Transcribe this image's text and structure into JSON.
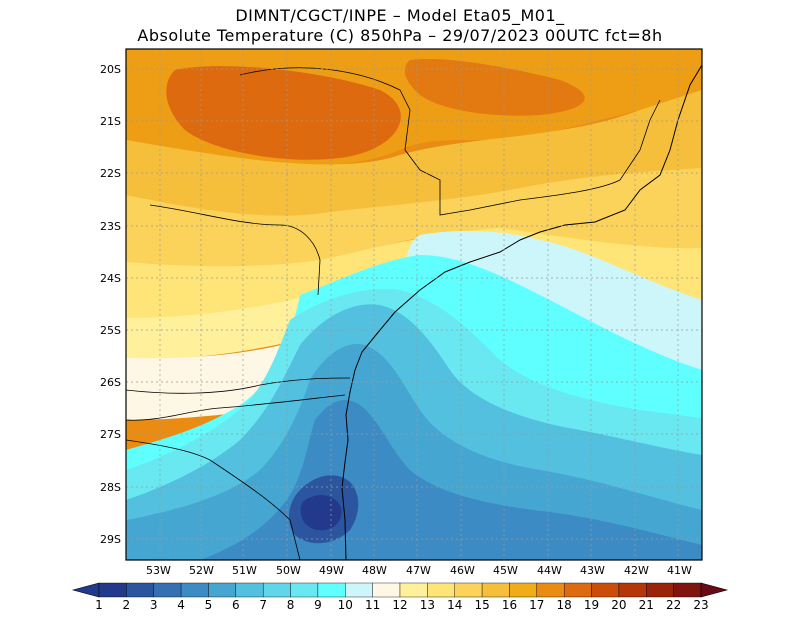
{
  "header": {
    "line1": "DIMNT/CGCT/INPE –  Model Eta05_M01_",
    "line2": "Absolute Temperature (C) 850hPa –  29/07/2023 00UTC fct=8h"
  },
  "map": {
    "lat_labels": [
      "20S",
      "21S",
      "22S",
      "23S",
      "24S",
      "25S",
      "26S",
      "27S",
      "28S",
      "29S"
    ],
    "lon_labels": [
      "53W",
      "52W",
      "51W",
      "50W",
      "49W",
      "48W",
      "47W",
      "46W",
      "45W",
      "44W",
      "43W",
      "42W",
      "41W"
    ]
  },
  "colorbar": {
    "labels": [
      "1",
      "2",
      "3",
      "4",
      "5",
      "6",
      "7",
      "8",
      "9",
      "10",
      "11",
      "12",
      "13",
      "14",
      "15",
      "16",
      "17",
      "18",
      "19",
      "20",
      "21",
      "22",
      "23"
    ],
    "colors": [
      "#233a8c",
      "#2c55a0",
      "#3470b2",
      "#3c8bc4",
      "#46a6d2",
      "#52c0de",
      "#5fd6ea",
      "#69e8f2",
      "#60ffff",
      "#cdf6fb",
      "#fff7e6",
      "#fff09c",
      "#ffe577",
      "#fbd25a",
      "#f5bf3c",
      "#f0ad17",
      "#ea8c12",
      "#dd6a0f",
      "#cc4d0a",
      "#b53607",
      "#9b2307",
      "#821410",
      "#6a0a14"
    ]
  }
}
